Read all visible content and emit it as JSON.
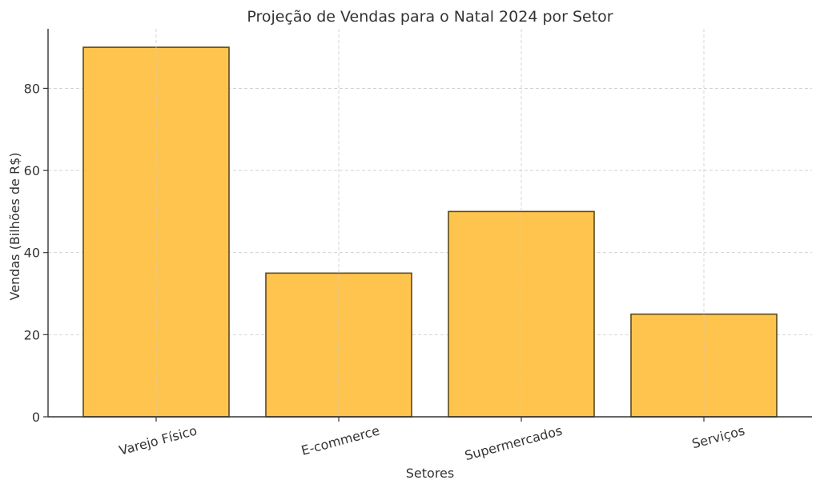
{
  "chart_data": {
    "type": "bar",
    "title": "Projeção de Vendas para o Natal 2024 por Setor",
    "xlabel": "Setores",
    "ylabel": "Vendas (Bilhões de R$)",
    "categories": [
      "Varejo Físico",
      "E-commerce",
      "Supermercados",
      "Serviços"
    ],
    "values": [
      90,
      35,
      50,
      25
    ],
    "ylim": [
      0,
      94.5
    ],
    "yticks": [
      0,
      20,
      40,
      60,
      80
    ],
    "grid": true,
    "legend": "none",
    "colors": {
      "bar_fill": "#FFC44D",
      "bar_edge": "#5A4A1E",
      "grid": "#CCCCCC",
      "axis": "#333333"
    }
  }
}
